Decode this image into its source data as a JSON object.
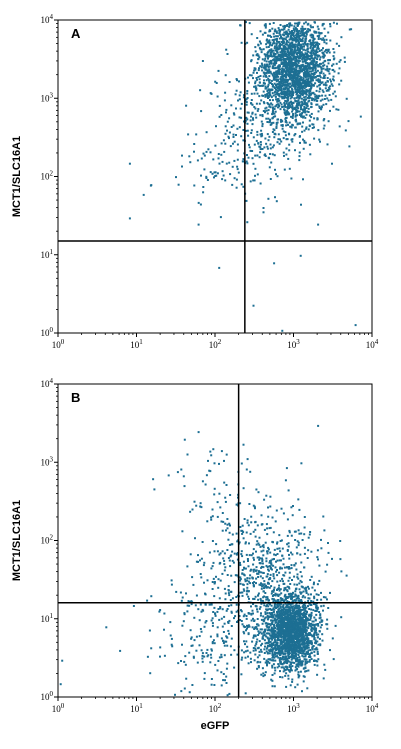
{
  "chart_data": [
    {
      "type": "scatter",
      "panel_label": "A",
      "xlabel": "",
      "ylabel": "MCT1/SLC16A1",
      "xscale": "log",
      "yscale": "log",
      "xlim": [
        1,
        10000
      ],
      "ylim": [
        1,
        10000
      ],
      "x_ticks": [
        {
          "value": 1,
          "base": "10",
          "exp": "0"
        },
        {
          "value": 10,
          "base": "10",
          "exp": "1"
        },
        {
          "value": 100,
          "base": "10",
          "exp": "2"
        },
        {
          "value": 1000,
          "base": "10",
          "exp": "3"
        },
        {
          "value": 10000,
          "base": "10",
          "exp": "4"
        }
      ],
      "y_ticks": [
        {
          "value": 1,
          "base": "10",
          "exp": "0"
        },
        {
          "value": 10,
          "base": "10",
          "exp": "1"
        },
        {
          "value": 100,
          "base": "10",
          "exp": "2"
        },
        {
          "value": 1000,
          "base": "10",
          "exp": "3"
        },
        {
          "value": 10000,
          "base": "10",
          "exp": "4"
        }
      ],
      "gate": {
        "x": 240,
        "y": 15
      },
      "color": "#1d6f93",
      "grid": false,
      "populations": [
        {
          "name": "",
          "x_center": 1000,
          "y_center": 2500,
          "x_spread": 0.23,
          "y_spread": 0.35,
          "count": 2200
        },
        {
          "name": "",
          "x_center": 350,
          "y_center": 500,
          "x_spread": 0.35,
          "y_spread": 0.4,
          "count": 320
        },
        {
          "name": "",
          "x_center": 120,
          "y_center": 130,
          "x_spread": 0.35,
          "y_spread": 0.35,
          "count": 60
        }
      ],
      "outliers": [
        {
          "x": 8,
          "y": 30
        },
        {
          "x": 15,
          "y": 80
        },
        {
          "x": 8,
          "y": 150
        },
        {
          "x": 12,
          "y": 60
        },
        {
          "x": 300,
          "y": 2.3
        },
        {
          "x": 550,
          "y": 8
        },
        {
          "x": 700,
          "y": 1.1
        },
        {
          "x": 1200,
          "y": 10
        },
        {
          "x": 110,
          "y": 7
        },
        {
          "x": 60,
          "y": 25
        },
        {
          "x": 2000,
          "y": 25
        },
        {
          "x": 3000,
          "y": 150
        },
        {
          "x": 4500,
          "y": 400
        },
        {
          "x": 6000,
          "y": 1.3
        },
        {
          "x": 7000,
          "y": 600
        },
        {
          "x": 5000,
          "y": 250
        }
      ]
    },
    {
      "type": "scatter",
      "panel_label": "B",
      "xlabel": "eGFP",
      "ylabel": "MCT1/SLC16A1",
      "xscale": "log",
      "yscale": "log",
      "xlim": [
        1,
        10000
      ],
      "ylim": [
        1,
        10000
      ],
      "x_ticks": [
        {
          "value": 1,
          "base": "10",
          "exp": "0"
        },
        {
          "value": 10,
          "base": "10",
          "exp": "1"
        },
        {
          "value": 100,
          "base": "10",
          "exp": "2"
        },
        {
          "value": 1000,
          "base": "10",
          "exp": "3"
        },
        {
          "value": 10000,
          "base": "10",
          "exp": "4"
        }
      ],
      "y_ticks": [
        {
          "value": 1,
          "base": "10",
          "exp": "0"
        },
        {
          "value": 10,
          "base": "10",
          "exp": "1"
        },
        {
          "value": 100,
          "base": "10",
          "exp": "2"
        },
        {
          "value": 1000,
          "base": "10",
          "exp": "3"
        },
        {
          "value": 10000,
          "base": "10",
          "exp": "4"
        }
      ],
      "gate": {
        "x": 200,
        "y": 16
      },
      "color": "#1d6f93",
      "grid": false,
      "populations": [
        {
          "name": "",
          "x_center": 900,
          "y_center": 7,
          "x_spread": 0.17,
          "y_spread": 0.25,
          "count": 1900
        },
        {
          "name": "",
          "x_center": 350,
          "y_center": 40,
          "x_spread": 0.4,
          "y_spread": 0.45,
          "count": 650
        },
        {
          "name": "",
          "x_center": 120,
          "y_center": 6,
          "x_spread": 0.4,
          "y_spread": 0.35,
          "count": 220
        },
        {
          "name": "",
          "x_center": 120,
          "y_center": 400,
          "x_spread": 0.35,
          "y_spread": 0.35,
          "count": 60
        }
      ],
      "outliers": [
        {
          "x": 1.1,
          "y": 3
        },
        {
          "x": 1.05,
          "y": 1.5
        },
        {
          "x": 4,
          "y": 8
        },
        {
          "x": 6,
          "y": 4
        },
        {
          "x": 9,
          "y": 15
        },
        {
          "x": 15,
          "y": 20
        },
        {
          "x": 25,
          "y": 700
        },
        {
          "x": 40,
          "y": 2000
        },
        {
          "x": 60,
          "y": 2500
        },
        {
          "x": 2000,
          "y": 3000
        },
        {
          "x": 3000,
          "y": 60
        },
        {
          "x": 30,
          "y": 1.1
        }
      ]
    }
  ]
}
